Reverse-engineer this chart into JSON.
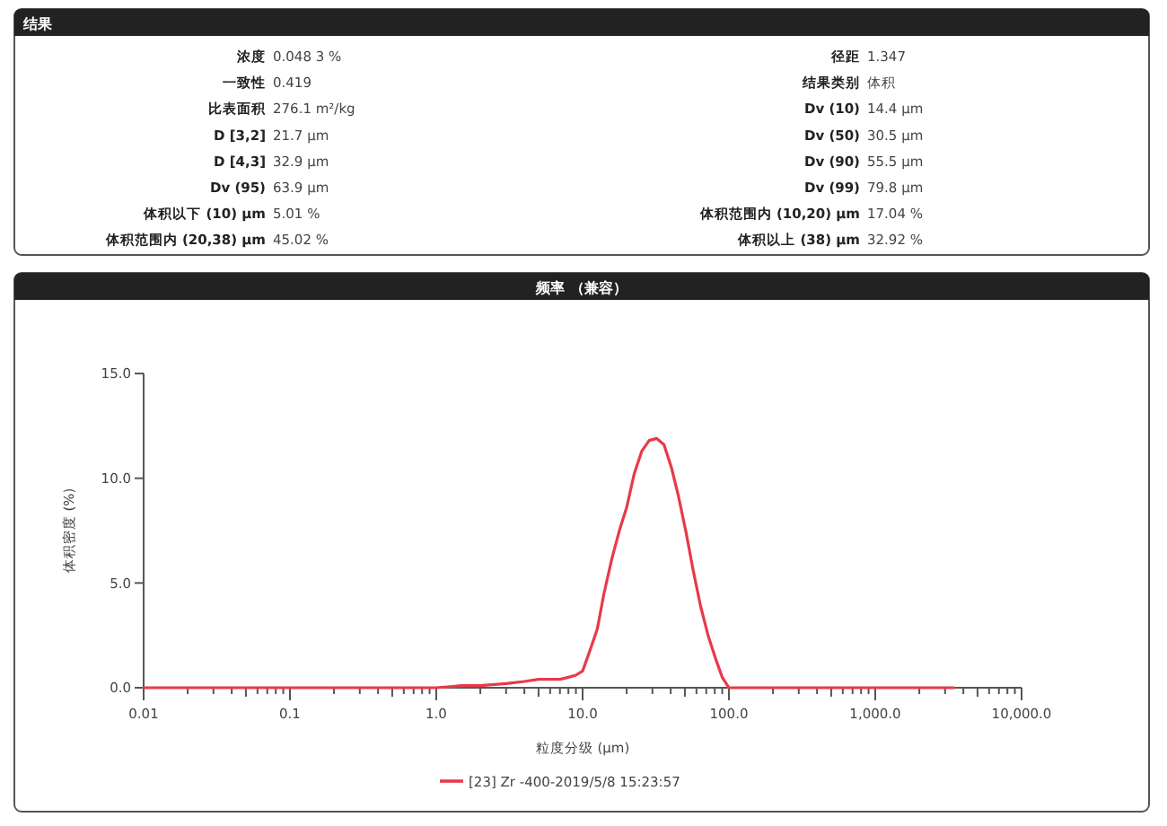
{
  "chart_data": [
    {
      "type": "other",
      "title": "结果",
      "annotations": [
        "浓度",
        "0.048 3 %",
        "一致性",
        "0.419",
        "比表面积",
        "276.1 m²/kg",
        "D [3,2]",
        "21.7 μm",
        "D [4,3]",
        "32.9 μm",
        "Dv (95)",
        "63.9 μm",
        "体积以下 (10) μm",
        "5.01 %",
        "体积范围内 (20,38) μm",
        "45.02 %",
        "径距",
        "1.347",
        "结果类别",
        "体积",
        "Dv (10)",
        "14.4 μm",
        "Dv (50)",
        "30.5 μm",
        "Dv (90)",
        "55.5 μm",
        "Dv (99)",
        "79.8 μm",
        "体积范围内 (10,20) μm",
        "17.04 %",
        "体积以上 (38) μm",
        "32.92 %"
      ]
    },
    {
      "type": "line",
      "title": "频率 （兼容）",
      "xlabel": "粒度分级 (μm)",
      "ylabel": "体积密度 (%)",
      "log": "x",
      "xlim": [
        0.01,
        10000
      ],
      "ylim": [
        0,
        15
      ],
      "xticks": [
        {
          "value": 0.01,
          "label": "0.01"
        },
        {
          "value": 0.1,
          "label": "0.1"
        },
        {
          "value": 1,
          "label": "1.0"
        },
        {
          "value": 10,
          "label": "10.0"
        },
        {
          "value": 100,
          "label": "100.0"
        },
        {
          "value": 1000,
          "label": "1,000.0"
        },
        {
          "value": 10000,
          "label": "10,000.0"
        }
      ],
      "yticks": [
        {
          "value": 0,
          "label": "0.0"
        },
        {
          "value": 5,
          "label": "5.0"
        },
        {
          "value": 10,
          "label": "10.0"
        },
        {
          "value": 15,
          "label": "15.0"
        }
      ],
      "legend": "bottom",
      "x": [
        0.01,
        0.1,
        1,
        1.5,
        2,
        3,
        4,
        5,
        6,
        7,
        8,
        9,
        10,
        11,
        12.6,
        14,
        15.9,
        18,
        20,
        22.5,
        25.4,
        28.5,
        32,
        36,
        40.5,
        45,
        51,
        57,
        64,
        72,
        81,
        90,
        100,
        1000,
        3440
      ],
      "series": [
        {
          "name": "[23] Zr    -400-2019/5/8 15:23:57",
          "color": "#e8394a",
          "values": [
            0,
            0,
            0,
            0.1,
            0.1,
            0.2,
            0.3,
            0.4,
            0.4,
            0.4,
            0.5,
            0.6,
            0.8,
            1.6,
            2.8,
            4.5,
            6.2,
            7.6,
            8.6,
            10.2,
            11.3,
            11.8,
            11.9,
            11.6,
            10.5,
            9.2,
            7.4,
            5.6,
            3.9,
            2.5,
            1.4,
            0.5,
            0,
            0,
            0
          ]
        }
      ]
    }
  ]
}
